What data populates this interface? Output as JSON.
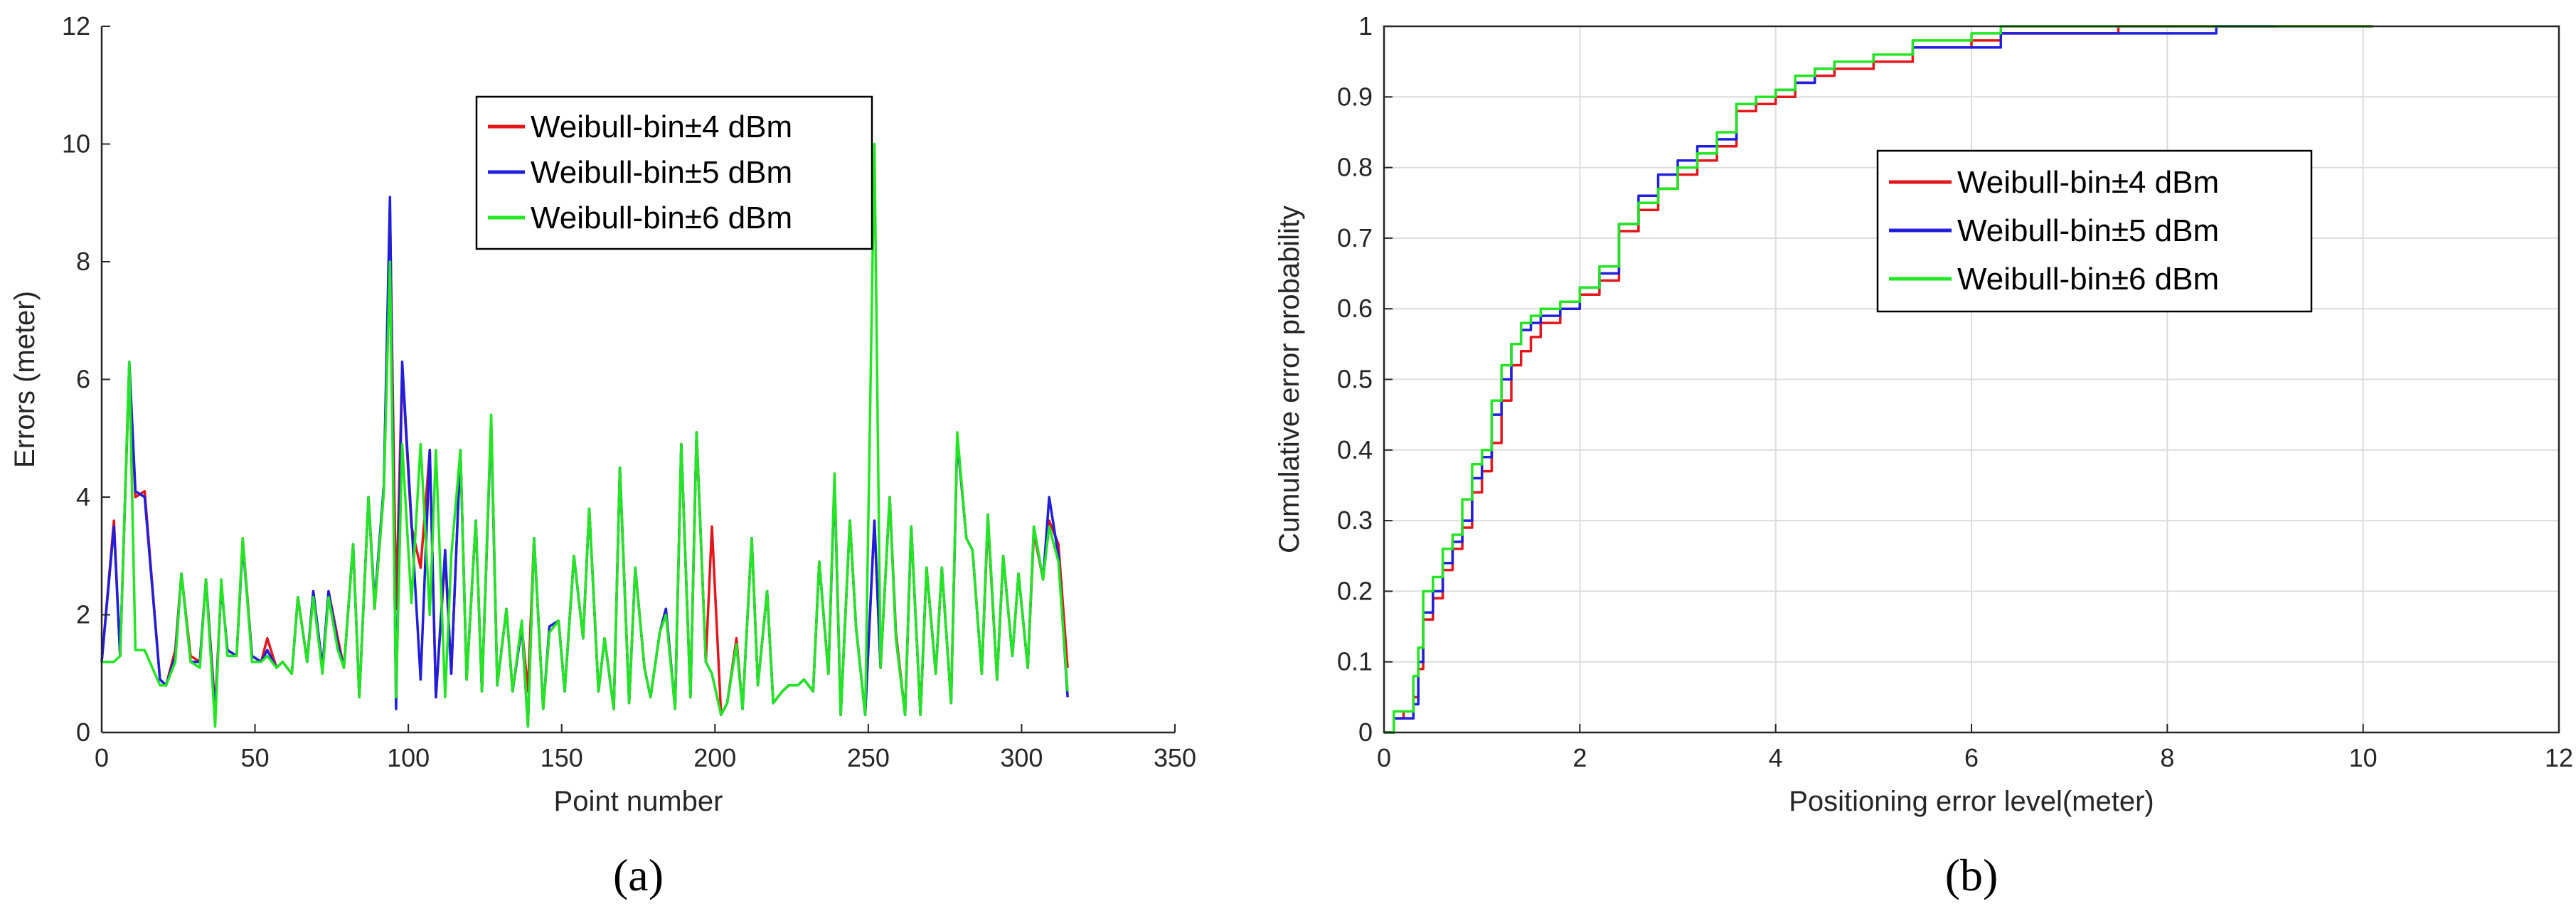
{
  "colors": {
    "series_red": "#e3161b",
    "series_blue": "#1f1fdc",
    "series_green": "#22e622",
    "axis": "#262626",
    "grid": "#dcdcdc"
  },
  "panels": [
    {
      "caption": "(a)"
    },
    {
      "caption": "(b)"
    }
  ],
  "chart_data": [
    {
      "type": "line",
      "xlabel": "Point number",
      "ylabel": "Errors (meter)",
      "xlim": [
        0,
        350
      ],
      "ylim": [
        0,
        12
      ],
      "xticks": [
        0,
        50,
        100,
        150,
        200,
        250,
        300,
        350
      ],
      "yticks": [
        0,
        2,
        4,
        6,
        8,
        10,
        12
      ],
      "grid": false,
      "legend_position": "top-center",
      "series": [
        {
          "name": "Weibull-bin±4 dBm",
          "color": "#e3161b",
          "x": [
            0,
            4,
            6,
            9,
            11,
            14,
            19,
            21,
            24,
            26,
            29,
            32,
            34,
            37,
            39,
            41,
            44,
            46,
            49,
            52,
            54,
            57,
            59,
            62,
            64,
            67,
            69,
            72,
            74,
            77,
            79,
            82,
            84,
            87,
            89,
            92,
            94,
            96,
            98,
            101,
            104,
            107,
            109,
            112,
            114,
            117,
            119,
            122,
            124,
            127,
            129,
            132,
            134,
            137,
            139,
            141,
            144,
            146,
            149,
            151,
            154,
            157,
            159,
            162,
            164,
            167,
            169,
            172,
            174,
            177,
            179,
            182,
            184,
            187,
            189,
            192,
            194,
            197,
            199,
            202,
            204,
            207,
            209,
            212,
            214,
            217,
            219,
            222,
            224,
            227,
            229,
            232,
            234,
            237,
            239,
            241,
            244,
            246,
            249,
            252,
            254,
            257,
            259,
            262,
            264,
            267,
            269,
            272,
            274,
            277,
            279,
            282,
            284,
            287,
            289,
            292,
            294,
            297,
            299,
            302,
            304,
            307,
            309,
            312,
            315
          ],
          "y": [
            1.2,
            3.6,
            1.3,
            6.2,
            4.0,
            4.1,
            0.9,
            0.8,
            1.4,
            2.7,
            1.3,
            1.2,
            2.6,
            0.4,
            2.5,
            1.4,
            1.3,
            3.3,
            1.3,
            1.2,
            1.6,
            1.1,
            1.2,
            1.0,
            2.3,
            1.2,
            2.4,
            1.1,
            2.4,
            1.6,
            1.1,
            3.2,
            0.6,
            4.0,
            2.1,
            4.1,
            8.9,
            2.1,
            6.2,
            3.5,
            2.8,
            4.8,
            0.6,
            3.0,
            1.0,
            4.8,
            0.9,
            3.6,
            0.7,
            5.3,
            0.8,
            2.1,
            0.7,
            1.8,
            0.7,
            3.3,
            0.4,
            1.7,
            1.9,
            0.7,
            3.0,
            1.6,
            3.8,
            0.7,
            1.6,
            0.4,
            4.5,
            0.5,
            2.8,
            1.1,
            0.6,
            1.7,
            2.1,
            0.4,
            4.9,
            0.6,
            5.1,
            1.2,
            3.5,
            0.3,
            0.5,
            1.6,
            0.4,
            3.3,
            0.8,
            2.4,
            0.5,
            0.7,
            0.8,
            0.8,
            0.9,
            0.7,
            2.9,
            1.0,
            4.3,
            0.3,
            3.6,
            1.8,
            0.3,
            3.6,
            1.1,
            4.0,
            1.7,
            0.3,
            3.5,
            0.3,
            2.8,
            1.0,
            2.8,
            0.5,
            5.0,
            3.3,
            3.1,
            1.0,
            3.6,
            0.9,
            3.0,
            1.3,
            2.7,
            1.1,
            3.4,
            2.6,
            3.6,
            3.2,
            1.1
          ]
        },
        {
          "name": "Weibull-bin±5 dBm",
          "color": "#1f1fdc",
          "x": [
            0,
            4,
            6,
            9,
            11,
            14,
            19,
            21,
            24,
            26,
            29,
            32,
            34,
            37,
            39,
            41,
            44,
            46,
            49,
            52,
            54,
            57,
            59,
            62,
            64,
            67,
            69,
            72,
            74,
            77,
            79,
            82,
            84,
            87,
            89,
            92,
            94,
            96,
            98,
            101,
            104,
            107,
            109,
            112,
            114,
            117,
            119,
            122,
            124,
            127,
            129,
            132,
            134,
            137,
            139,
            141,
            144,
            146,
            149,
            151,
            154,
            157,
            159,
            162,
            164,
            167,
            169,
            172,
            174,
            177,
            179,
            182,
            184,
            187,
            189,
            192,
            194,
            197,
            199,
            202,
            204,
            207,
            209,
            212,
            214,
            217,
            219,
            222,
            224,
            227,
            229,
            232,
            234,
            237,
            239,
            241,
            244,
            246,
            249,
            252,
            254,
            257,
            259,
            262,
            264,
            267,
            269,
            272,
            274,
            277,
            279,
            282,
            284,
            287,
            289,
            292,
            294,
            297,
            299,
            302,
            304,
            307,
            309,
            312,
            315
          ],
          "y": [
            1.2,
            3.5,
            1.3,
            6.3,
            4.1,
            4.0,
            0.9,
            0.8,
            1.3,
            2.7,
            1.2,
            1.2,
            2.6,
            0.3,
            2.5,
            1.4,
            1.3,
            3.2,
            1.3,
            1.2,
            1.4,
            1.1,
            1.2,
            1.0,
            2.3,
            1.2,
            2.4,
            1.1,
            2.4,
            1.5,
            1.1,
            3.2,
            0.6,
            4.0,
            2.2,
            4.2,
            9.1,
            0.4,
            6.3,
            3.6,
            0.9,
            4.8,
            0.6,
            3.1,
            1.0,
            4.8,
            0.9,
            3.6,
            0.7,
            5.3,
            0.8,
            2.1,
            0.7,
            1.8,
            0.1,
            3.3,
            0.4,
            1.8,
            1.9,
            0.7,
            3.0,
            1.6,
            3.8,
            0.7,
            1.6,
            0.4,
            4.5,
            0.5,
            2.8,
            1.1,
            0.6,
            1.7,
            2.1,
            0.4,
            4.9,
            0.6,
            5.1,
            1.2,
            1.0,
            0.3,
            0.5,
            1.5,
            0.4,
            3.3,
            0.8,
            2.4,
            0.5,
            0.7,
            0.8,
            0.8,
            0.9,
            0.7,
            2.9,
            1.0,
            4.3,
            0.3,
            3.6,
            1.8,
            0.3,
            3.6,
            1.1,
            4.0,
            1.6,
            0.3,
            3.5,
            0.3,
            2.8,
            1.0,
            2.8,
            0.5,
            5.0,
            3.3,
            3.1,
            1.0,
            3.7,
            0.9,
            3.0,
            1.3,
            2.7,
            1.1,
            3.5,
            2.6,
            4.0,
            3.0,
            0.6
          ]
        },
        {
          "name": "Weibull-bin±6 dBm",
          "color": "#22e622",
          "x": [
            0,
            4,
            6,
            9,
            11,
            14,
            19,
            21,
            24,
            26,
            29,
            32,
            34,
            37,
            39,
            41,
            44,
            46,
            49,
            52,
            54,
            57,
            59,
            62,
            64,
            67,
            69,
            72,
            74,
            77,
            79,
            82,
            84,
            87,
            89,
            92,
            94,
            96,
            98,
            101,
            104,
            107,
            109,
            112,
            114,
            117,
            119,
            122,
            124,
            127,
            129,
            132,
            134,
            137,
            139,
            141,
            144,
            146,
            149,
            151,
            154,
            157,
            159,
            162,
            164,
            167,
            169,
            172,
            174,
            177,
            179,
            182,
            184,
            187,
            189,
            192,
            194,
            197,
            199,
            202,
            204,
            207,
            209,
            212,
            214,
            217,
            219,
            222,
            224,
            227,
            229,
            232,
            234,
            237,
            239,
            241,
            244,
            246,
            249,
            252,
            254,
            257,
            259,
            262,
            264,
            267,
            269,
            272,
            274,
            277,
            279,
            282,
            284,
            287,
            289,
            292,
            294,
            297,
            299,
            302,
            304,
            307,
            309,
            312,
            315
          ],
          "y": [
            1.2,
            1.2,
            1.3,
            6.3,
            1.4,
            1.4,
            0.8,
            0.8,
            1.2,
            2.7,
            1.2,
            1.1,
            2.6,
            0.1,
            2.6,
            1.3,
            1.3,
            3.3,
            1.2,
            1.2,
            1.3,
            1.1,
            1.2,
            1.0,
            2.3,
            1.2,
            2.3,
            1.0,
            2.3,
            1.4,
            1.1,
            3.2,
            0.6,
            4.0,
            2.1,
            4.1,
            8.0,
            0.6,
            4.9,
            2.2,
            4.9,
            2.0,
            4.8,
            0.6,
            3.0,
            4.8,
            0.9,
            3.6,
            0.7,
            5.4,
            0.8,
            2.1,
            0.7,
            1.9,
            0.1,
            3.3,
            0.4,
            1.7,
            1.9,
            0.7,
            3.0,
            1.6,
            3.8,
            0.7,
            1.6,
            0.4,
            4.5,
            0.5,
            2.8,
            1.1,
            0.6,
            1.7,
            2.0,
            0.4,
            4.9,
            0.6,
            5.1,
            1.2,
            1.0,
            0.3,
            0.5,
            1.5,
            0.4,
            3.3,
            0.8,
            2.4,
            0.5,
            0.7,
            0.8,
            0.8,
            0.9,
            0.7,
            2.9,
            1.0,
            4.4,
            0.3,
            3.6,
            1.8,
            0.3,
            10.0,
            1.1,
            4.0,
            1.6,
            0.3,
            3.5,
            0.3,
            2.8,
            1.0,
            2.8,
            0.5,
            5.1,
            3.3,
            3.1,
            1.0,
            3.7,
            0.9,
            3.0,
            1.3,
            2.7,
            1.1,
            3.5,
            2.6,
            3.5,
            2.9,
            0.7
          ]
        }
      ]
    },
    {
      "type": "line",
      "xlabel": "Positioning error level(meter)",
      "ylabel": "Cumulative error probability",
      "xlim": [
        0,
        12
      ],
      "ylim": [
        0,
        1
      ],
      "xticks": [
        0,
        2,
        4,
        6,
        8,
        10,
        12
      ],
      "yticks": [
        0,
        0.1,
        0.2,
        0.3,
        0.4,
        0.5,
        0.6,
        0.7,
        0.8,
        0.9,
        1
      ],
      "grid": true,
      "legend_position": "center-right",
      "series": [
        {
          "name": "Weibull-bin±4 dBm",
          "color": "#e3161b",
          "x": [
            0,
            0.1,
            0.2,
            0.3,
            0.35,
            0.4,
            0.5,
            0.6,
            0.7,
            0.8,
            0.9,
            1.0,
            1.1,
            1.2,
            1.3,
            1.4,
            1.5,
            1.6,
            1.8,
            2.0,
            2.2,
            2.4,
            2.6,
            2.8,
            3.0,
            3.2,
            3.4,
            3.6,
            3.8,
            4.0,
            4.2,
            4.4,
            4.6,
            5.0,
            5.4,
            6.0,
            6.3,
            7.0,
            7.5,
            8.0,
            8.5,
            9.0,
            10.1
          ],
          "y": [
            0,
            0.02,
            0.03,
            0.05,
            0.09,
            0.16,
            0.19,
            0.23,
            0.26,
            0.29,
            0.34,
            0.37,
            0.41,
            0.47,
            0.52,
            0.54,
            0.56,
            0.58,
            0.6,
            0.62,
            0.64,
            0.71,
            0.74,
            0.77,
            0.79,
            0.81,
            0.83,
            0.88,
            0.89,
            0.9,
            0.92,
            0.93,
            0.94,
            0.95,
            0.97,
            0.98,
            0.99,
            0.99,
            1.0,
            1.0,
            1.0,
            1.0,
            1.0
          ]
        },
        {
          "name": "Weibull-bin±5 dBm",
          "color": "#1f1fdc",
          "x": [
            0,
            0.1,
            0.2,
            0.3,
            0.35,
            0.4,
            0.5,
            0.6,
            0.7,
            0.8,
            0.9,
            1.0,
            1.1,
            1.2,
            1.3,
            1.4,
            1.5,
            1.6,
            1.8,
            2.0,
            2.2,
            2.4,
            2.6,
            2.8,
            3.0,
            3.2,
            3.4,
            3.6,
            3.8,
            4.0,
            4.2,
            4.4,
            4.6,
            5.0,
            5.4,
            6.0,
            6.3,
            7.0,
            7.5,
            8.0,
            8.5,
            9.0,
            9.1
          ],
          "y": [
            0,
            0.02,
            0.02,
            0.04,
            0.1,
            0.17,
            0.2,
            0.24,
            0.27,
            0.3,
            0.36,
            0.39,
            0.45,
            0.5,
            0.55,
            0.57,
            0.58,
            0.59,
            0.6,
            0.63,
            0.65,
            0.72,
            0.76,
            0.79,
            0.81,
            0.83,
            0.84,
            0.89,
            0.9,
            0.91,
            0.92,
            0.94,
            0.95,
            0.96,
            0.97,
            0.97,
            0.99,
            0.99,
            0.99,
            0.99,
            1.0,
            1.0,
            1.0
          ]
        },
        {
          "name": "Weibull-bin±6 dBm",
          "color": "#22e622",
          "x": [
            0,
            0.1,
            0.2,
            0.3,
            0.35,
            0.4,
            0.5,
            0.6,
            0.7,
            0.8,
            0.9,
            1.0,
            1.1,
            1.2,
            1.3,
            1.4,
            1.5,
            1.6,
            1.8,
            2.0,
            2.2,
            2.4,
            2.6,
            2.8,
            3.0,
            3.2,
            3.4,
            3.6,
            3.8,
            4.0,
            4.2,
            4.4,
            4.6,
            5.0,
            5.4,
            6.0,
            6.3,
            7.0,
            7.5,
            8.0,
            8.5,
            9.0,
            10.1
          ],
          "y": [
            0,
            0.03,
            0.03,
            0.08,
            0.12,
            0.2,
            0.22,
            0.26,
            0.28,
            0.33,
            0.38,
            0.4,
            0.47,
            0.52,
            0.55,
            0.58,
            0.59,
            0.6,
            0.61,
            0.63,
            0.66,
            0.72,
            0.75,
            0.77,
            0.8,
            0.82,
            0.85,
            0.89,
            0.9,
            0.91,
            0.93,
            0.94,
            0.95,
            0.96,
            0.98,
            0.99,
            1.0,
            1.0,
            1.0,
            1.0,
            1.0,
            1.0,
            1.0
          ]
        }
      ]
    }
  ]
}
